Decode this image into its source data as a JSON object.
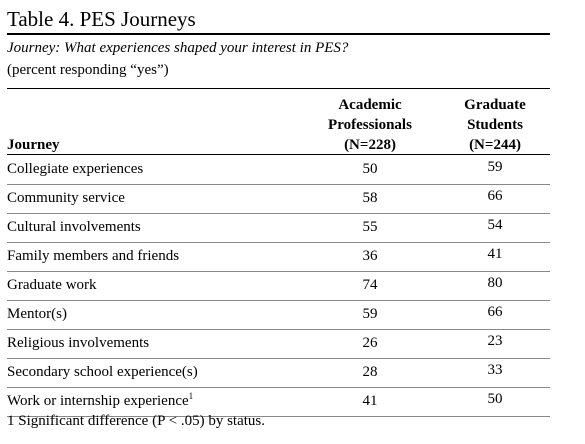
{
  "header": {
    "title": "Table 4. PES Journeys",
    "question": "Journey: What experiences shaped your interest in PES?",
    "note": "(percent responding “yes”)"
  },
  "table": {
    "columns": [
      {
        "lines": [
          "Journey"
        ]
      },
      {
        "lines": [
          "Academic",
          "Professionals",
          "(N=228)"
        ]
      },
      {
        "lines": [
          "Graduate",
          "Students",
          "(N=244)"
        ]
      }
    ],
    "rows": [
      {
        "label": "Collegiate experiences",
        "values": [
          50,
          59
        ]
      },
      {
        "label": "Community service",
        "values": [
          58,
          66
        ]
      },
      {
        "label": "Cultural involvements",
        "values": [
          55,
          54
        ]
      },
      {
        "label": "Family members and friends",
        "values": [
          36,
          41
        ]
      },
      {
        "label": "Graduate work",
        "values": [
          74,
          80
        ]
      },
      {
        "label": "Mentor(s)",
        "values": [
          59,
          66
        ]
      },
      {
        "label": "Religious involvements",
        "values": [
          26,
          23
        ]
      },
      {
        "label": "Secondary school experience(s)",
        "values": [
          28,
          33
        ]
      },
      {
        "label": "Work or internship experience",
        "marker": "1",
        "values": [
          41,
          50
        ]
      }
    ]
  },
  "footnote": {
    "marker": "1",
    "text": "Significant difference (P < .05) by status."
  }
}
